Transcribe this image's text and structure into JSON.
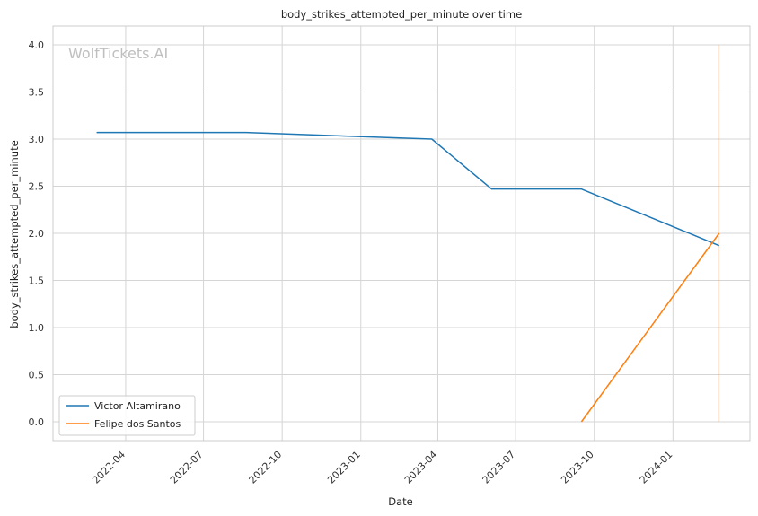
{
  "watermark": "WolfTickets.AI",
  "chart_data": {
    "type": "line",
    "title": "body_strikes_attempted_per_minute over time",
    "xlabel": "Date",
    "ylabel": "body_strikes_attempted_per_minute",
    "x_type": "date",
    "xlim": [
      "2022-01-06",
      "2024-03-31"
    ],
    "ylim": [
      -0.2,
      4.2
    ],
    "x_ticks": [
      "2022-04",
      "2022-07",
      "2022-10",
      "2023-01",
      "2023-04",
      "2023-07",
      "2023-10",
      "2024-01"
    ],
    "y_ticks": [
      "0.0",
      "0.5",
      "1.0",
      "1.5",
      "2.0",
      "2.5",
      "3.0",
      "3.5",
      "4.0"
    ],
    "grid": true,
    "legend_position": "bottom-left",
    "reference_line": {
      "x": "2024-02-24",
      "y_range": [
        0,
        4
      ]
    },
    "series": [
      {
        "name": "Victor Altamirano",
        "color": "#1f77b4",
        "points": [
          {
            "x": "2022-02-26",
            "y": 3.07
          },
          {
            "x": "2022-08-20",
            "y": 3.07
          },
          {
            "x": "2023-03-25",
            "y": 3.0
          },
          {
            "x": "2023-06-03",
            "y": 2.47
          },
          {
            "x": "2023-09-16",
            "y": 2.47
          },
          {
            "x": "2024-02-24",
            "y": 1.87
          }
        ]
      },
      {
        "name": "Felipe dos Santos",
        "color": "#ff7f0e",
        "points": [
          {
            "x": "2023-09-16",
            "y": 0.0
          },
          {
            "x": "2024-02-24",
            "y": 2.0
          }
        ]
      }
    ]
  }
}
